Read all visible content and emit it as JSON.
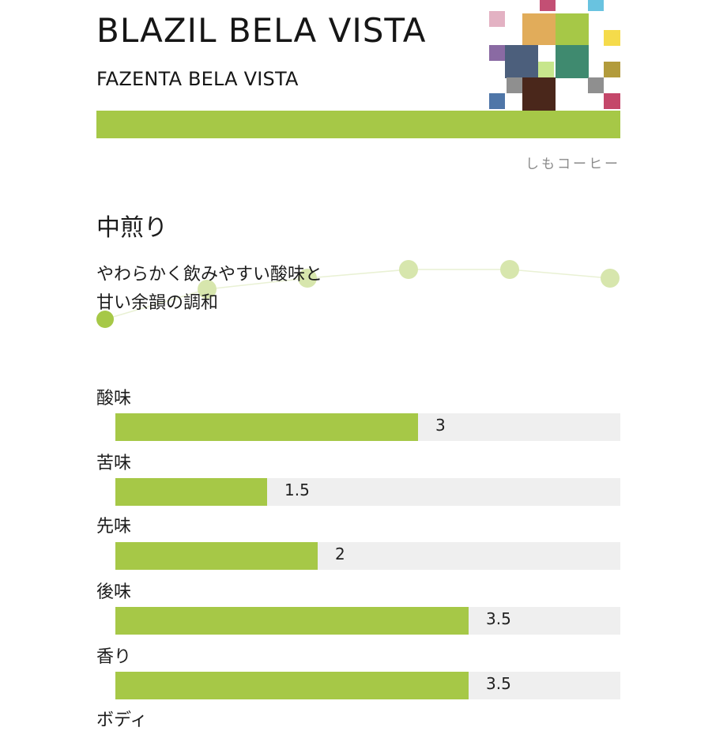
{
  "header": {
    "title": "BLAZIL BELA VISTA",
    "subtitle": "FAZENTA BELA VISTA",
    "brand": "しもコーヒー",
    "accent_color": "#a6c847",
    "mosaic_colors": [
      "#e3b2c3",
      "#c34f74",
      "#69c3e0",
      "#e1ac5a",
      "#a6c847",
      "#f5db4b",
      "#8a6aa3",
      "#4c5f7c",
      "#3f8a6f",
      "#c7e68c",
      "#b29b3c",
      "#8f8f8f",
      "#4a271b",
      "#4f76a8",
      "#c4476a"
    ]
  },
  "profile": {
    "roast": "中煎り",
    "description_lines": [
      "やわらかく飲みやすい酸味と",
      "甘い余韻の調和"
    ],
    "curve_points": 6
  },
  "chart_data": {
    "type": "bar",
    "categories": [
      "酸味",
      "苦味",
      "先味",
      "後味",
      "香り",
      "ボディ"
    ],
    "values": [
      3,
      1.5,
      2,
      3.5,
      3.5,
      null
    ],
    "value_labels": [
      "3",
      "1.5",
      "2",
      "3.5",
      "3.5",
      ""
    ],
    "xlim": [
      0,
      5
    ],
    "grid": false
  }
}
